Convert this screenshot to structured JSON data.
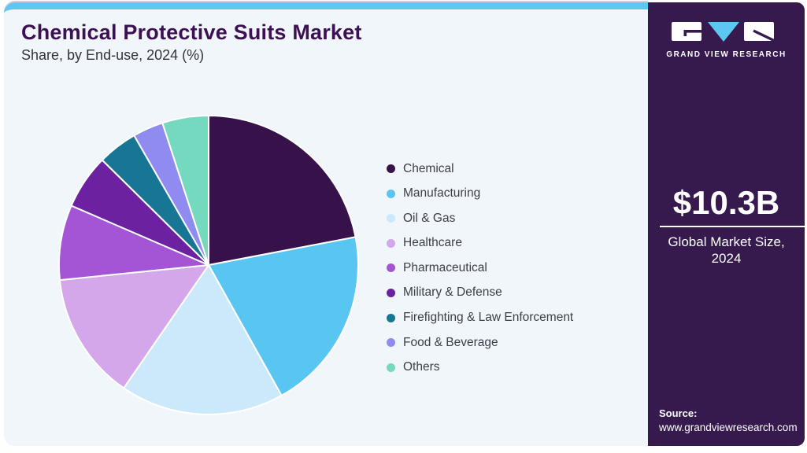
{
  "header": {
    "title": "Chemical Protective Suits Market",
    "subtitle": "Share, by End-use, 2024 (%)"
  },
  "chart_data": {
    "type": "pie",
    "title": "Chemical Protective Suits Market Share, by End-use, 2024 (%)",
    "unit": "%",
    "start_angle_deg": 0,
    "direction": "clockwise",
    "legend_position": "right",
    "segments": [
      {
        "label": "Chemical",
        "value": 22.0,
        "color": "#37124a"
      },
      {
        "label": "Manufacturing",
        "value": 19.9,
        "color": "#59c6f2"
      },
      {
        "label": "Oil & Gas",
        "value": 17.7,
        "color": "#cbe9fa"
      },
      {
        "label": "Healthcare",
        "value": 13.8,
        "color": "#d3a7ea"
      },
      {
        "label": "Pharmaceutical",
        "value": 8.1,
        "color": "#a355d5"
      },
      {
        "label": "Military & Defense",
        "value": 5.9,
        "color": "#6c22a0"
      },
      {
        "label": "Firefighting & Law Enforcement",
        "value": 4.3,
        "color": "#177693"
      },
      {
        "label": "Food & Beverage",
        "value": 3.3,
        "color": "#908bf0"
      },
      {
        "label": "Others",
        "value": 5.0,
        "color": "#75d9c0"
      }
    ]
  },
  "sidebar": {
    "brand": "GRAND VIEW RESEARCH",
    "market_size_value": "$10.3B",
    "market_size_label_line1": "Global Market Size,",
    "market_size_label_line2": "2024",
    "source_label": "Source:",
    "source_url": "www.grandviewresearch.com",
    "background_color": "#361a4e",
    "accent_blue": "#5cc8f2"
  }
}
